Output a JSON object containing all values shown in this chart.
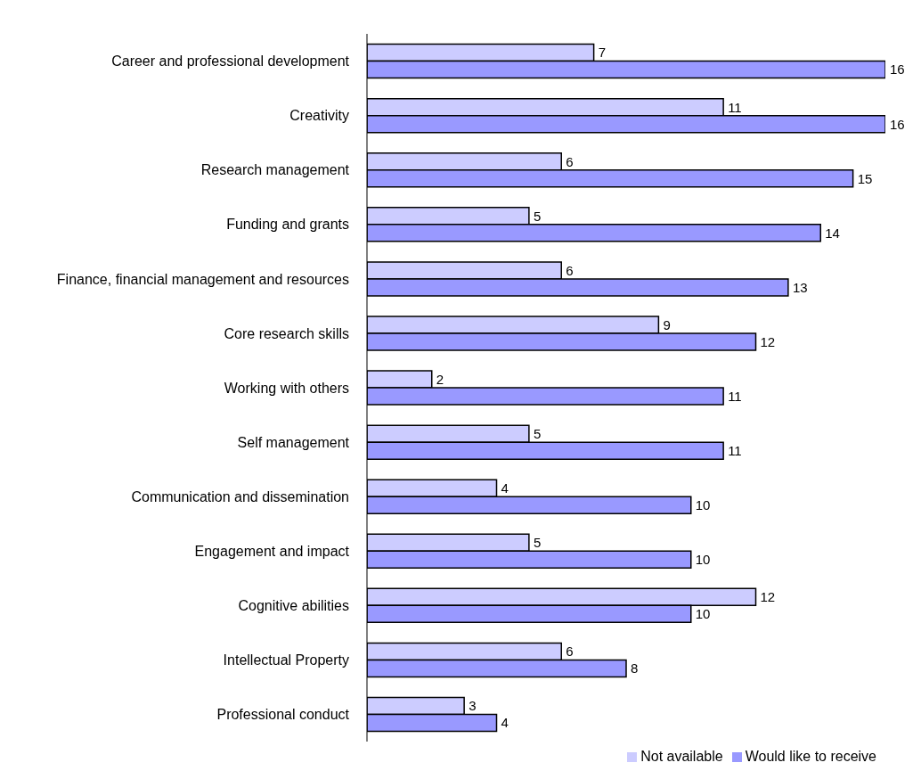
{
  "chart_data": {
    "type": "bar",
    "orientation": "horizontal",
    "categories": [
      "Career and professional development",
      "Creativity",
      "Research management",
      "Funding and grants",
      "Finance, financial management and resources",
      "Core research skills",
      "Working with others",
      "Self management",
      "Communication and dissemination",
      "Engagement and impact",
      "Cognitive abilities",
      "Intellectual Property",
      "Professional conduct"
    ],
    "series": [
      {
        "name": "Not available",
        "color": "#ccccff",
        "values": [
          7,
          11,
          6,
          5,
          6,
          9,
          2,
          5,
          4,
          5,
          12,
          6,
          3
        ]
      },
      {
        "name": "Would like to receive",
        "color": "#9999ff",
        "values": [
          16,
          16,
          15,
          14,
          13,
          12,
          11,
          11,
          10,
          10,
          10,
          8,
          4
        ]
      }
    ],
    "data_labels": true,
    "legend": "bottom right",
    "tick_labels": "y"
  }
}
